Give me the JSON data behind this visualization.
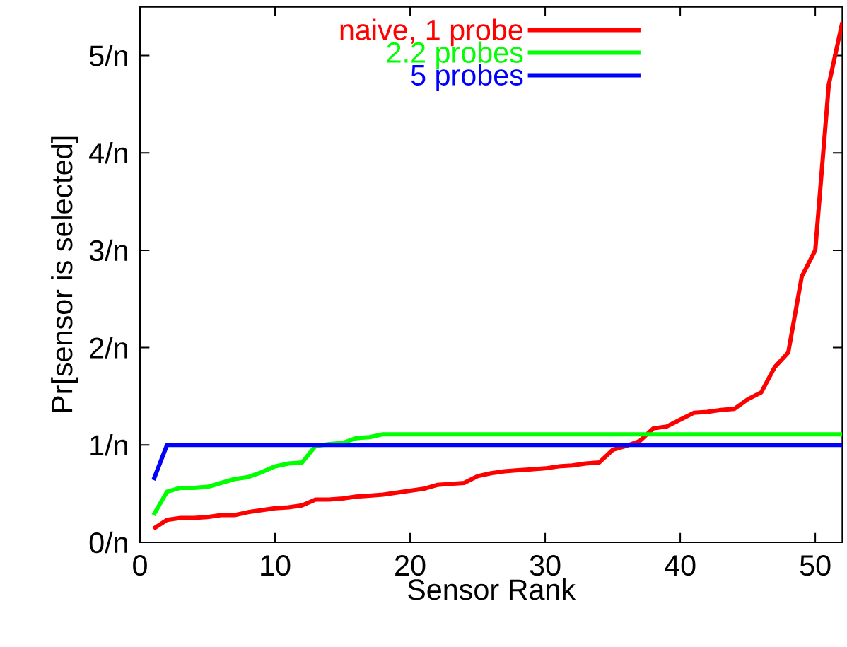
{
  "chart_data": {
    "type": "line",
    "xlabel": "Sensor Rank",
    "ylabel": "Pr[sensor is selected]",
    "xlim": [
      0,
      52
    ],
    "ylim": [
      0,
      5.5
    ],
    "xticks": [
      0,
      10,
      20,
      30,
      40,
      50
    ],
    "yticks": [
      {
        "value": 0,
        "label": "0/n"
      },
      {
        "value": 1,
        "label": "1/n"
      },
      {
        "value": 2,
        "label": "2/n"
      },
      {
        "value": 3,
        "label": "3/n"
      },
      {
        "value": 4,
        "label": "4/n"
      },
      {
        "value": 5,
        "label": "5/n"
      }
    ],
    "x": [
      1,
      2,
      3,
      4,
      5,
      6,
      7,
      8,
      9,
      10,
      11,
      12,
      13,
      14,
      15,
      16,
      17,
      18,
      19,
      20,
      21,
      22,
      23,
      24,
      25,
      26,
      27,
      28,
      29,
      30,
      31,
      32,
      33,
      34,
      35,
      36,
      37,
      38,
      39,
      40,
      41,
      42,
      43,
      44,
      45,
      46,
      47,
      48,
      49,
      50,
      51,
      52
    ],
    "series": [
      {
        "name": "naive, 1 probe",
        "color": "#ff0000",
        "values": [
          0.14,
          0.23,
          0.25,
          0.25,
          0.26,
          0.28,
          0.28,
          0.31,
          0.33,
          0.35,
          0.36,
          0.38,
          0.44,
          0.44,
          0.45,
          0.47,
          0.48,
          0.49,
          0.51,
          0.53,
          0.55,
          0.59,
          0.6,
          0.61,
          0.68,
          0.71,
          0.73,
          0.74,
          0.75,
          0.76,
          0.78,
          0.79,
          0.81,
          0.82,
          0.95,
          0.99,
          1.04,
          1.17,
          1.19,
          1.26,
          1.33,
          1.34,
          1.36,
          1.37,
          1.47,
          1.54,
          1.8,
          1.95,
          2.73,
          3.0,
          4.7,
          5.34
        ]
      },
      {
        "name": "2.2 probes",
        "color": "#00ff00",
        "values": [
          0.28,
          0.52,
          0.56,
          0.56,
          0.57,
          0.61,
          0.65,
          0.67,
          0.72,
          0.78,
          0.81,
          0.82,
          0.99,
          1.01,
          1.02,
          1.07,
          1.08,
          1.11,
          1.11,
          1.11,
          1.11,
          1.11,
          1.11,
          1.11,
          1.11,
          1.11,
          1.11,
          1.11,
          1.11,
          1.11,
          1.11,
          1.11,
          1.11,
          1.11,
          1.11,
          1.11,
          1.11,
          1.11,
          1.11,
          1.11,
          1.11,
          1.11,
          1.11,
          1.11,
          1.11,
          1.11,
          1.11,
          1.11,
          1.11,
          1.11,
          1.11,
          1.11
        ]
      },
      {
        "name": "5 probes",
        "color": "#0000ff",
        "values": [
          0.64,
          1,
          1,
          1,
          1,
          1,
          1,
          1,
          1,
          1,
          1,
          1,
          1,
          1,
          1,
          1,
          1,
          1,
          1,
          1,
          1,
          1,
          1,
          1,
          1,
          1,
          1,
          1,
          1,
          1,
          1,
          1,
          1,
          1,
          1,
          1,
          1,
          1,
          1,
          1,
          1,
          1,
          1,
          1,
          1,
          1,
          1,
          1,
          1,
          1,
          1,
          1
        ]
      }
    ],
    "legend": "top right",
    "marker": "none",
    "line_style": "solid",
    "grid": false
  }
}
